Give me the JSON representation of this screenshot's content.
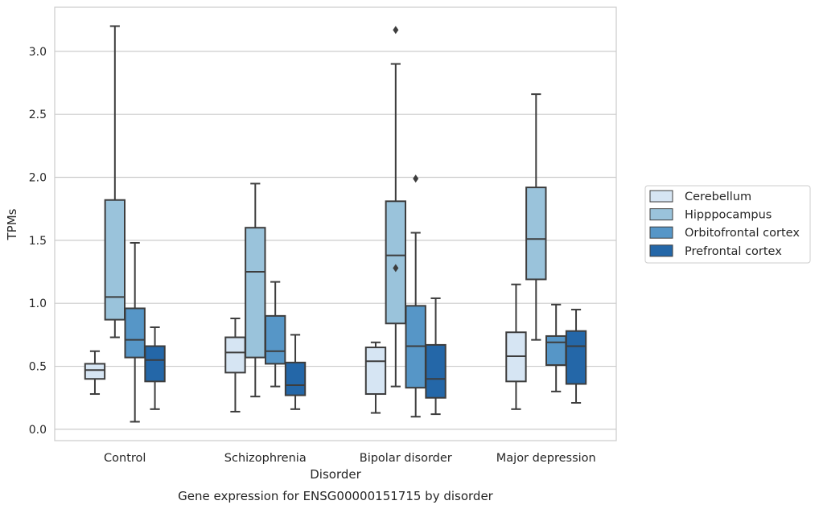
{
  "caption": "Gene expression for ENSG00000151715 by disorder",
  "chart_data": {
    "type": "box",
    "xlabel": "Disorder",
    "ylabel": "TPMs",
    "ylim": [
      -0.09,
      3.35
    ],
    "yticks": [
      0.0,
      0.5,
      1.0,
      1.5,
      2.0,
      2.5,
      3.0
    ],
    "ytick_labels": [
      "0.0",
      "0.5",
      "1.0",
      "1.5",
      "2.0",
      "2.5",
      "3.0"
    ],
    "grid": "horizontal",
    "legend_position": "right",
    "categories": [
      "Control",
      "Schizophrenia",
      "Bipolar disorder",
      "Major depression"
    ],
    "series": [
      {
        "name": "Cerebellum",
        "color": "#d6e5f3",
        "boxes": [
          {
            "whislo": 0.28,
            "q1": 0.4,
            "med": 0.47,
            "q3": 0.52,
            "whishi": 0.62,
            "fliers": []
          },
          {
            "whislo": 0.14,
            "q1": 0.45,
            "med": 0.61,
            "q3": 0.73,
            "whishi": 0.88,
            "fliers": []
          },
          {
            "whislo": 0.13,
            "q1": 0.28,
            "med": 0.54,
            "q3": 0.65,
            "whishi": 0.69,
            "fliers": []
          },
          {
            "whislo": 0.16,
            "q1": 0.38,
            "med": 0.58,
            "q3": 0.77,
            "whishi": 1.15,
            "fliers": []
          }
        ]
      },
      {
        "name": "Hipppocampus",
        "color": "#9ac3db",
        "boxes": [
          {
            "whislo": 0.73,
            "q1": 0.87,
            "med": 1.05,
            "q3": 1.82,
            "whishi": 3.2,
            "fliers": []
          },
          {
            "whislo": 0.26,
            "q1": 0.57,
            "med": 1.25,
            "q3": 1.6,
            "whishi": 1.95,
            "fliers": []
          },
          {
            "whislo": 0.34,
            "q1": 0.84,
            "med": 1.38,
            "q3": 1.81,
            "whishi": 2.9,
            "fliers": [
              3.17,
              1.28
            ]
          },
          {
            "whislo": 0.71,
            "q1": 1.19,
            "med": 1.51,
            "q3": 1.92,
            "whishi": 2.66,
            "fliers": []
          }
        ]
      },
      {
        "name": "Orbitofrontal cortex",
        "color": "#5696c7",
        "boxes": [
          {
            "whislo": 0.06,
            "q1": 0.57,
            "med": 0.71,
            "q3": 0.96,
            "whishi": 1.48,
            "fliers": []
          },
          {
            "whislo": 0.34,
            "q1": 0.52,
            "med": 0.62,
            "q3": 0.9,
            "whishi": 1.17,
            "fliers": []
          },
          {
            "whislo": 0.1,
            "q1": 0.33,
            "med": 0.66,
            "q3": 0.98,
            "whishi": 1.56,
            "fliers": [
              1.99
            ]
          },
          {
            "whislo": 0.3,
            "q1": 0.51,
            "med": 0.69,
            "q3": 0.74,
            "whishi": 0.99,
            "fliers": []
          }
        ]
      },
      {
        "name": "Prefrontal cortex",
        "color": "#2467a8",
        "boxes": [
          {
            "whislo": 0.16,
            "q1": 0.38,
            "med": 0.55,
            "q3": 0.66,
            "whishi": 0.81,
            "fliers": []
          },
          {
            "whislo": 0.16,
            "q1": 0.27,
            "med": 0.35,
            "q3": 0.53,
            "whishi": 0.75,
            "fliers": []
          },
          {
            "whislo": 0.12,
            "q1": 0.25,
            "med": 0.4,
            "q3": 0.67,
            "whishi": 1.04,
            "fliers": []
          },
          {
            "whislo": 0.21,
            "q1": 0.36,
            "med": 0.66,
            "q3": 0.78,
            "whishi": 0.95,
            "fliers": []
          }
        ]
      }
    ]
  }
}
